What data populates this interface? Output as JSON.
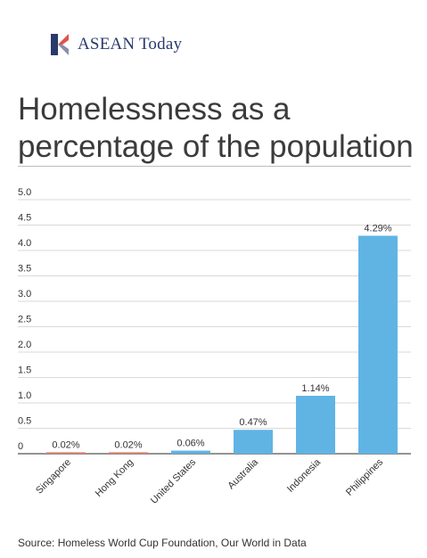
{
  "brand": {
    "name": "ASEAN Today",
    "logo_icon": "aseantoday-logo-icon"
  },
  "title": "Homelessness as a percentage of the population",
  "source": "Source: Homeless World Cup Foundation, Our World in Data",
  "colors": {
    "bar": "#5fb4e4",
    "bar_small": "#e07a6a",
    "grid": "#d9d9d9",
    "text": "#333333"
  },
  "chart_data": {
    "type": "bar",
    "title": "Homelessness as a percentage of the population",
    "xlabel": "",
    "ylabel": "",
    "categories": [
      "Singapore",
      "Hong Kong",
      "United States",
      "Australia",
      "Indonesia",
      "Philippines"
    ],
    "values": [
      0.02,
      0.02,
      0.06,
      0.47,
      1.14,
      4.29
    ],
    "data_labels": [
      "0.02%",
      "0.02%",
      "0.06%",
      "0.47%",
      "1.14%",
      "4.29%"
    ],
    "ylim": [
      0,
      5.0
    ],
    "yticks": [
      0,
      0.5,
      1.0,
      1.5,
      2.0,
      2.5,
      3.0,
      3.5,
      4.0,
      4.5,
      5.0
    ],
    "ytick_labels": [
      "0",
      "0.5",
      "1.0",
      "1.5",
      "2.0",
      "2.5",
      "3.0",
      "3.5",
      "4.0",
      "4.5",
      "5.0"
    ],
    "grid": true,
    "legend": "none"
  }
}
